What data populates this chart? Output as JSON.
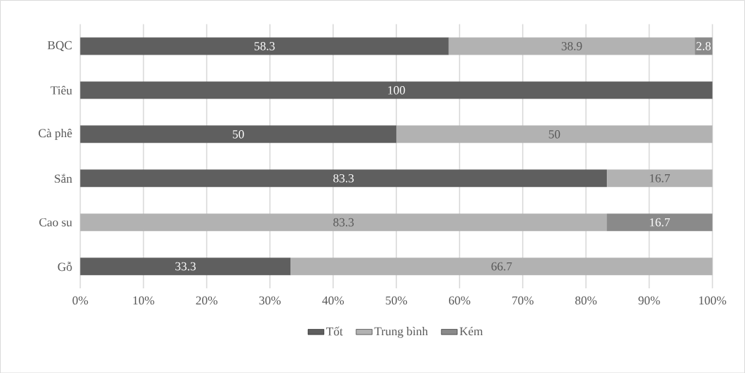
{
  "chart_data": {
    "type": "bar",
    "orientation": "horizontal",
    "stacked": true,
    "categories": [
      "BQC",
      "Tiêu",
      "Cà phê",
      "Sắn",
      "Cao su",
      "Gỗ"
    ],
    "series": [
      {
        "name": "Tốt",
        "color": "#5f5f5f",
        "values": [
          58.3,
          100,
          50,
          83.3,
          null,
          33.3
        ]
      },
      {
        "name": "Trung bình",
        "color": "#b2b2b2",
        "values": [
          38.9,
          null,
          50,
          16.7,
          83.3,
          66.7
        ]
      },
      {
        "name": "Kém",
        "color": "#8a8a8a",
        "values": [
          2.8,
          null,
          null,
          null,
          16.7,
          null
        ]
      }
    ],
    "xlim": [
      0,
      100
    ],
    "xticks": [
      {
        "value": 0,
        "label": "0%"
      },
      {
        "value": 10,
        "label": "10%"
      },
      {
        "value": 20,
        "label": "20%"
      },
      {
        "value": 30,
        "label": "30%"
      },
      {
        "value": 40,
        "label": "40%"
      },
      {
        "value": 50,
        "label": "50%"
      },
      {
        "value": 60,
        "label": "60%"
      },
      {
        "value": 70,
        "label": "70%"
      },
      {
        "value": 80,
        "label": "80%"
      },
      {
        "value": 90,
        "label": "90%"
      },
      {
        "value": 100,
        "label": "100%"
      }
    ],
    "grid": "x",
    "legend": "bottom",
    "data_labels": true
  }
}
